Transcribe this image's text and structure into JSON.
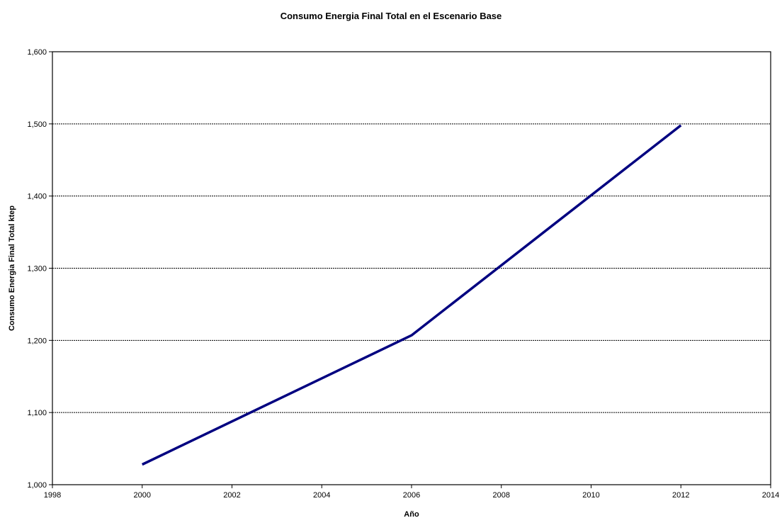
{
  "chart_data": {
    "type": "line",
    "title": "Consumo Energia Final Total en el Escenario Base",
    "xlabel": "Año",
    "ylabel": "Consumo Energia Final Total ktep",
    "xlim": [
      1998,
      2014
    ],
    "ylim": [
      1000,
      1600
    ],
    "x_ticks": [
      1998,
      2000,
      2002,
      2004,
      2006,
      2008,
      2010,
      2012,
      2014
    ],
    "x_tick_labels": [
      "1998",
      "2000",
      "2002",
      "2004",
      "2006",
      "2008",
      "2010",
      "2012",
      "2014"
    ],
    "y_ticks": [
      1000,
      1100,
      1200,
      1300,
      1400,
      1500,
      1600
    ],
    "y_tick_labels": [
      "1,000",
      "1,100",
      "1,200",
      "1,300",
      "1,400",
      "1,500",
      "1,600"
    ],
    "grid": "horizontal dashed",
    "series": [
      {
        "color": "#000080",
        "x": [
          2000,
          2006,
          2012
        ],
        "values": [
          1028,
          1207,
          1498
        ]
      }
    ]
  }
}
